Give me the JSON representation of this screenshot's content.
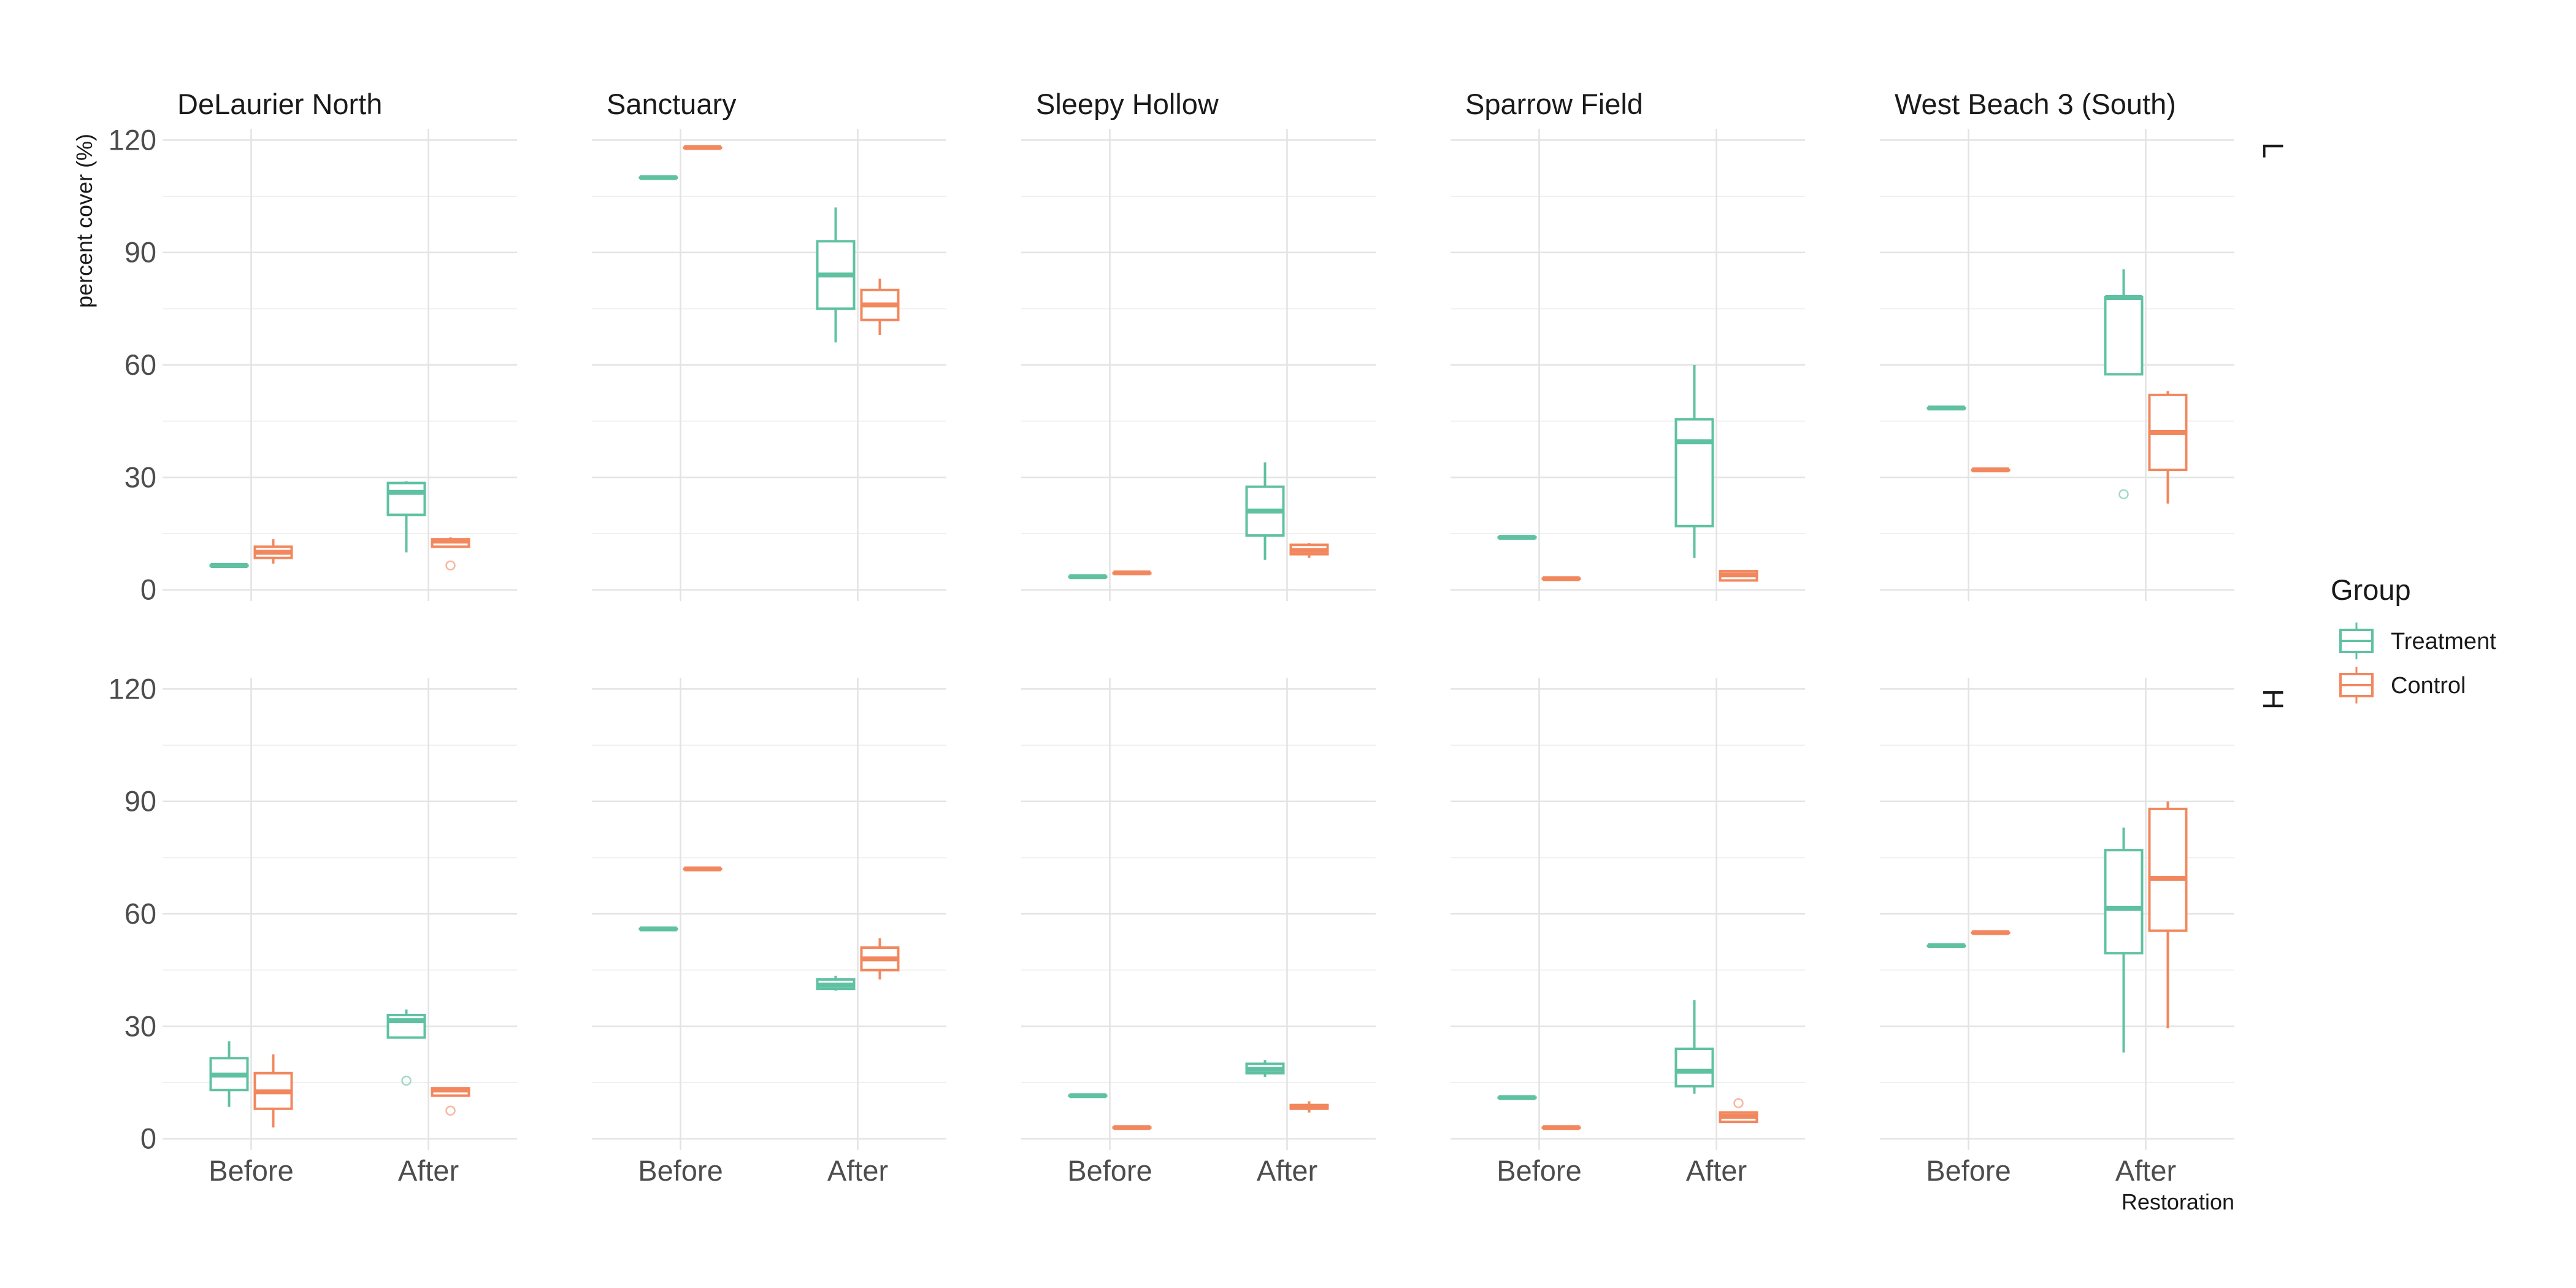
{
  "chart_data": {
    "type": "boxplot",
    "ylabel": "percent cover (%)",
    "xlabel": "Restoration",
    "ylim": [
      -3,
      123
    ],
    "y_ticks": [
      0,
      30,
      60,
      90,
      120
    ],
    "x_categories": [
      "Before",
      "After"
    ],
    "grid": true,
    "legend": {
      "title": "Group",
      "placement": "right",
      "entries": [
        {
          "name": "Treatment",
          "color": "#5fc1a2"
        },
        {
          "name": "Control",
          "color": "#f2875e"
        }
      ]
    },
    "columns": [
      "DeLaurier North",
      "Sanctuary",
      "Sleepy Hollow",
      "Sparrow Field",
      "West Beach 3 (South)"
    ],
    "rows": [
      "L",
      "H"
    ],
    "panels": [
      {
        "site": "DeLaurier North",
        "row": "L",
        "boxes": [
          {
            "x": "Before",
            "group": "Treatment",
            "min": 6.5,
            "q1": 6.5,
            "median": 6.5,
            "q3": 6.5,
            "max": 6.5,
            "outliers": []
          },
          {
            "x": "Before",
            "group": "Control",
            "min": 7,
            "q1": 8.5,
            "median": 10,
            "q3": 11.5,
            "max": 13.5,
            "outliers": []
          },
          {
            "x": "After",
            "group": "Treatment",
            "min": 10,
            "q1": 20,
            "median": 26,
            "q3": 28.5,
            "max": 29,
            "outliers": []
          },
          {
            "x": "After",
            "group": "Control",
            "min": 11.5,
            "q1": 11.5,
            "median": 13,
            "q3": 13.5,
            "max": 14,
            "outliers": [
              6.5
            ]
          }
        ]
      },
      {
        "site": "Sanctuary",
        "row": "L",
        "boxes": [
          {
            "x": "Before",
            "group": "Treatment",
            "min": 110,
            "q1": 110,
            "median": 110,
            "q3": 110,
            "max": 110,
            "outliers": []
          },
          {
            "x": "Before",
            "group": "Control",
            "min": 118,
            "q1": 118,
            "median": 118,
            "q3": 118,
            "max": 118,
            "outliers": []
          },
          {
            "x": "After",
            "group": "Treatment",
            "min": 66,
            "q1": 75,
            "median": 84,
            "q3": 93,
            "max": 102,
            "outliers": []
          },
          {
            "x": "After",
            "group": "Control",
            "min": 68,
            "q1": 72,
            "median": 76,
            "q3": 80,
            "max": 83,
            "outliers": []
          }
        ]
      },
      {
        "site": "Sleepy Hollow",
        "row": "L",
        "boxes": [
          {
            "x": "Before",
            "group": "Treatment",
            "min": 3.5,
            "q1": 3.5,
            "median": 3.5,
            "q3": 3.5,
            "max": 3.5,
            "outliers": []
          },
          {
            "x": "Before",
            "group": "Control",
            "min": 4.5,
            "q1": 4.5,
            "median": 4.5,
            "q3": 4.5,
            "max": 4.5,
            "outliers": []
          },
          {
            "x": "After",
            "group": "Treatment",
            "min": 8,
            "q1": 14.5,
            "median": 21,
            "q3": 27.5,
            "max": 34,
            "outliers": []
          },
          {
            "x": "After",
            "group": "Control",
            "min": 8.5,
            "q1": 9.5,
            "median": 10.5,
            "q3": 12,
            "max": 12.5,
            "outliers": []
          }
        ]
      },
      {
        "site": "Sparrow Field",
        "row": "L",
        "boxes": [
          {
            "x": "Before",
            "group": "Treatment",
            "min": 14,
            "q1": 14,
            "median": 14,
            "q3": 14,
            "max": 14,
            "outliers": []
          },
          {
            "x": "Before",
            "group": "Control",
            "min": 3,
            "q1": 3,
            "median": 3,
            "q3": 3,
            "max": 3,
            "outliers": []
          },
          {
            "x": "After",
            "group": "Treatment",
            "min": 8.5,
            "q1": 17,
            "median": 39.5,
            "q3": 45.5,
            "max": 60,
            "outliers": []
          },
          {
            "x": "After",
            "group": "Control",
            "min": 2.5,
            "q1": 2.5,
            "median": 4,
            "q3": 5,
            "max": 5,
            "outliers": []
          }
        ]
      },
      {
        "site": "West Beach 3 (South)",
        "row": "L",
        "boxes": [
          {
            "x": "Before",
            "group": "Treatment",
            "min": 48.5,
            "q1": 48.5,
            "median": 48.5,
            "q3": 48.5,
            "max": 48.5,
            "outliers": []
          },
          {
            "x": "Before",
            "group": "Control",
            "min": 32,
            "q1": 32,
            "median": 32,
            "q3": 32,
            "max": 32,
            "outliers": []
          },
          {
            "x": "After",
            "group": "Treatment",
            "min": 57.5,
            "q1": 57.5,
            "median": 78,
            "q3": 78,
            "max": 85.5,
            "outliers": [
              25.5
            ]
          },
          {
            "x": "After",
            "group": "Control",
            "min": 23,
            "q1": 32,
            "median": 42,
            "q3": 52,
            "max": 53,
            "outliers": []
          }
        ]
      },
      {
        "site": "DeLaurier North",
        "row": "H",
        "boxes": [
          {
            "x": "Before",
            "group": "Treatment",
            "min": 8.5,
            "q1": 13,
            "median": 17,
            "q3": 21.5,
            "max": 26,
            "outliers": []
          },
          {
            "x": "Before",
            "group": "Control",
            "min": 3,
            "q1": 8,
            "median": 12.5,
            "q3": 17.5,
            "max": 22.5,
            "outliers": []
          },
          {
            "x": "After",
            "group": "Treatment",
            "min": 27,
            "q1": 27,
            "median": 31.5,
            "q3": 33,
            "max": 34.5,
            "outliers": [
              15.5
            ]
          },
          {
            "x": "After",
            "group": "Control",
            "min": 11.5,
            "q1": 11.5,
            "median": 13,
            "q3": 13.5,
            "max": 13.5,
            "outliers": [
              7.5
            ]
          }
        ]
      },
      {
        "site": "Sanctuary",
        "row": "H",
        "boxes": [
          {
            "x": "Before",
            "group": "Treatment",
            "min": 56,
            "q1": 56,
            "median": 56,
            "q3": 56,
            "max": 56,
            "outliers": []
          },
          {
            "x": "Before",
            "group": "Control",
            "min": 72,
            "q1": 72,
            "median": 72,
            "q3": 72,
            "max": 72,
            "outliers": []
          },
          {
            "x": "After",
            "group": "Treatment",
            "min": 39.5,
            "q1": 40,
            "median": 41,
            "q3": 42.5,
            "max": 43.5,
            "outliers": []
          },
          {
            "x": "After",
            "group": "Control",
            "min": 42.5,
            "q1": 45,
            "median": 48,
            "q3": 51,
            "max": 53.5,
            "outliers": []
          }
        ]
      },
      {
        "site": "Sleepy Hollow",
        "row": "H",
        "boxes": [
          {
            "x": "Before",
            "group": "Treatment",
            "min": 11.5,
            "q1": 11.5,
            "median": 11.5,
            "q3": 11.5,
            "max": 11.5,
            "outliers": []
          },
          {
            "x": "Before",
            "group": "Control",
            "min": 3,
            "q1": 3,
            "median": 3,
            "q3": 3,
            "max": 3,
            "outliers": []
          },
          {
            "x": "After",
            "group": "Treatment",
            "min": 16.5,
            "q1": 17.5,
            "median": 18.5,
            "q3": 20,
            "max": 21,
            "outliers": []
          },
          {
            "x": "After",
            "group": "Control",
            "min": 7,
            "q1": 8,
            "median": 8.5,
            "q3": 9,
            "max": 10,
            "outliers": []
          }
        ]
      },
      {
        "site": "Sparrow Field",
        "row": "H",
        "boxes": [
          {
            "x": "Before",
            "group": "Treatment",
            "min": 11,
            "q1": 11,
            "median": 11,
            "q3": 11,
            "max": 11,
            "outliers": []
          },
          {
            "x": "Before",
            "group": "Control",
            "min": 3,
            "q1": 3,
            "median": 3,
            "q3": 3,
            "max": 3,
            "outliers": []
          },
          {
            "x": "After",
            "group": "Treatment",
            "min": 12,
            "q1": 14,
            "median": 18,
            "q3": 24,
            "max": 37,
            "outliers": []
          },
          {
            "x": "After",
            "group": "Control",
            "min": 4.5,
            "q1": 4.5,
            "median": 6,
            "q3": 7,
            "max": 7,
            "outliers": [
              9.5
            ]
          }
        ]
      },
      {
        "site": "West Beach 3 (South)",
        "row": "H",
        "boxes": [
          {
            "x": "Before",
            "group": "Treatment",
            "min": 51.5,
            "q1": 51.5,
            "median": 51.5,
            "q3": 51.5,
            "max": 51.5,
            "outliers": []
          },
          {
            "x": "Before",
            "group": "Control",
            "min": 55,
            "q1": 55,
            "median": 55,
            "q3": 55,
            "max": 55,
            "outliers": []
          },
          {
            "x": "After",
            "group": "Treatment",
            "min": 23,
            "q1": 49.5,
            "median": 61.5,
            "q3": 77,
            "max": 83,
            "outliers": []
          },
          {
            "x": "After",
            "group": "Control",
            "min": 29.5,
            "q1": 55.5,
            "median": 69.5,
            "q3": 88,
            "max": 90,
            "outliers": []
          }
        ]
      }
    ]
  }
}
